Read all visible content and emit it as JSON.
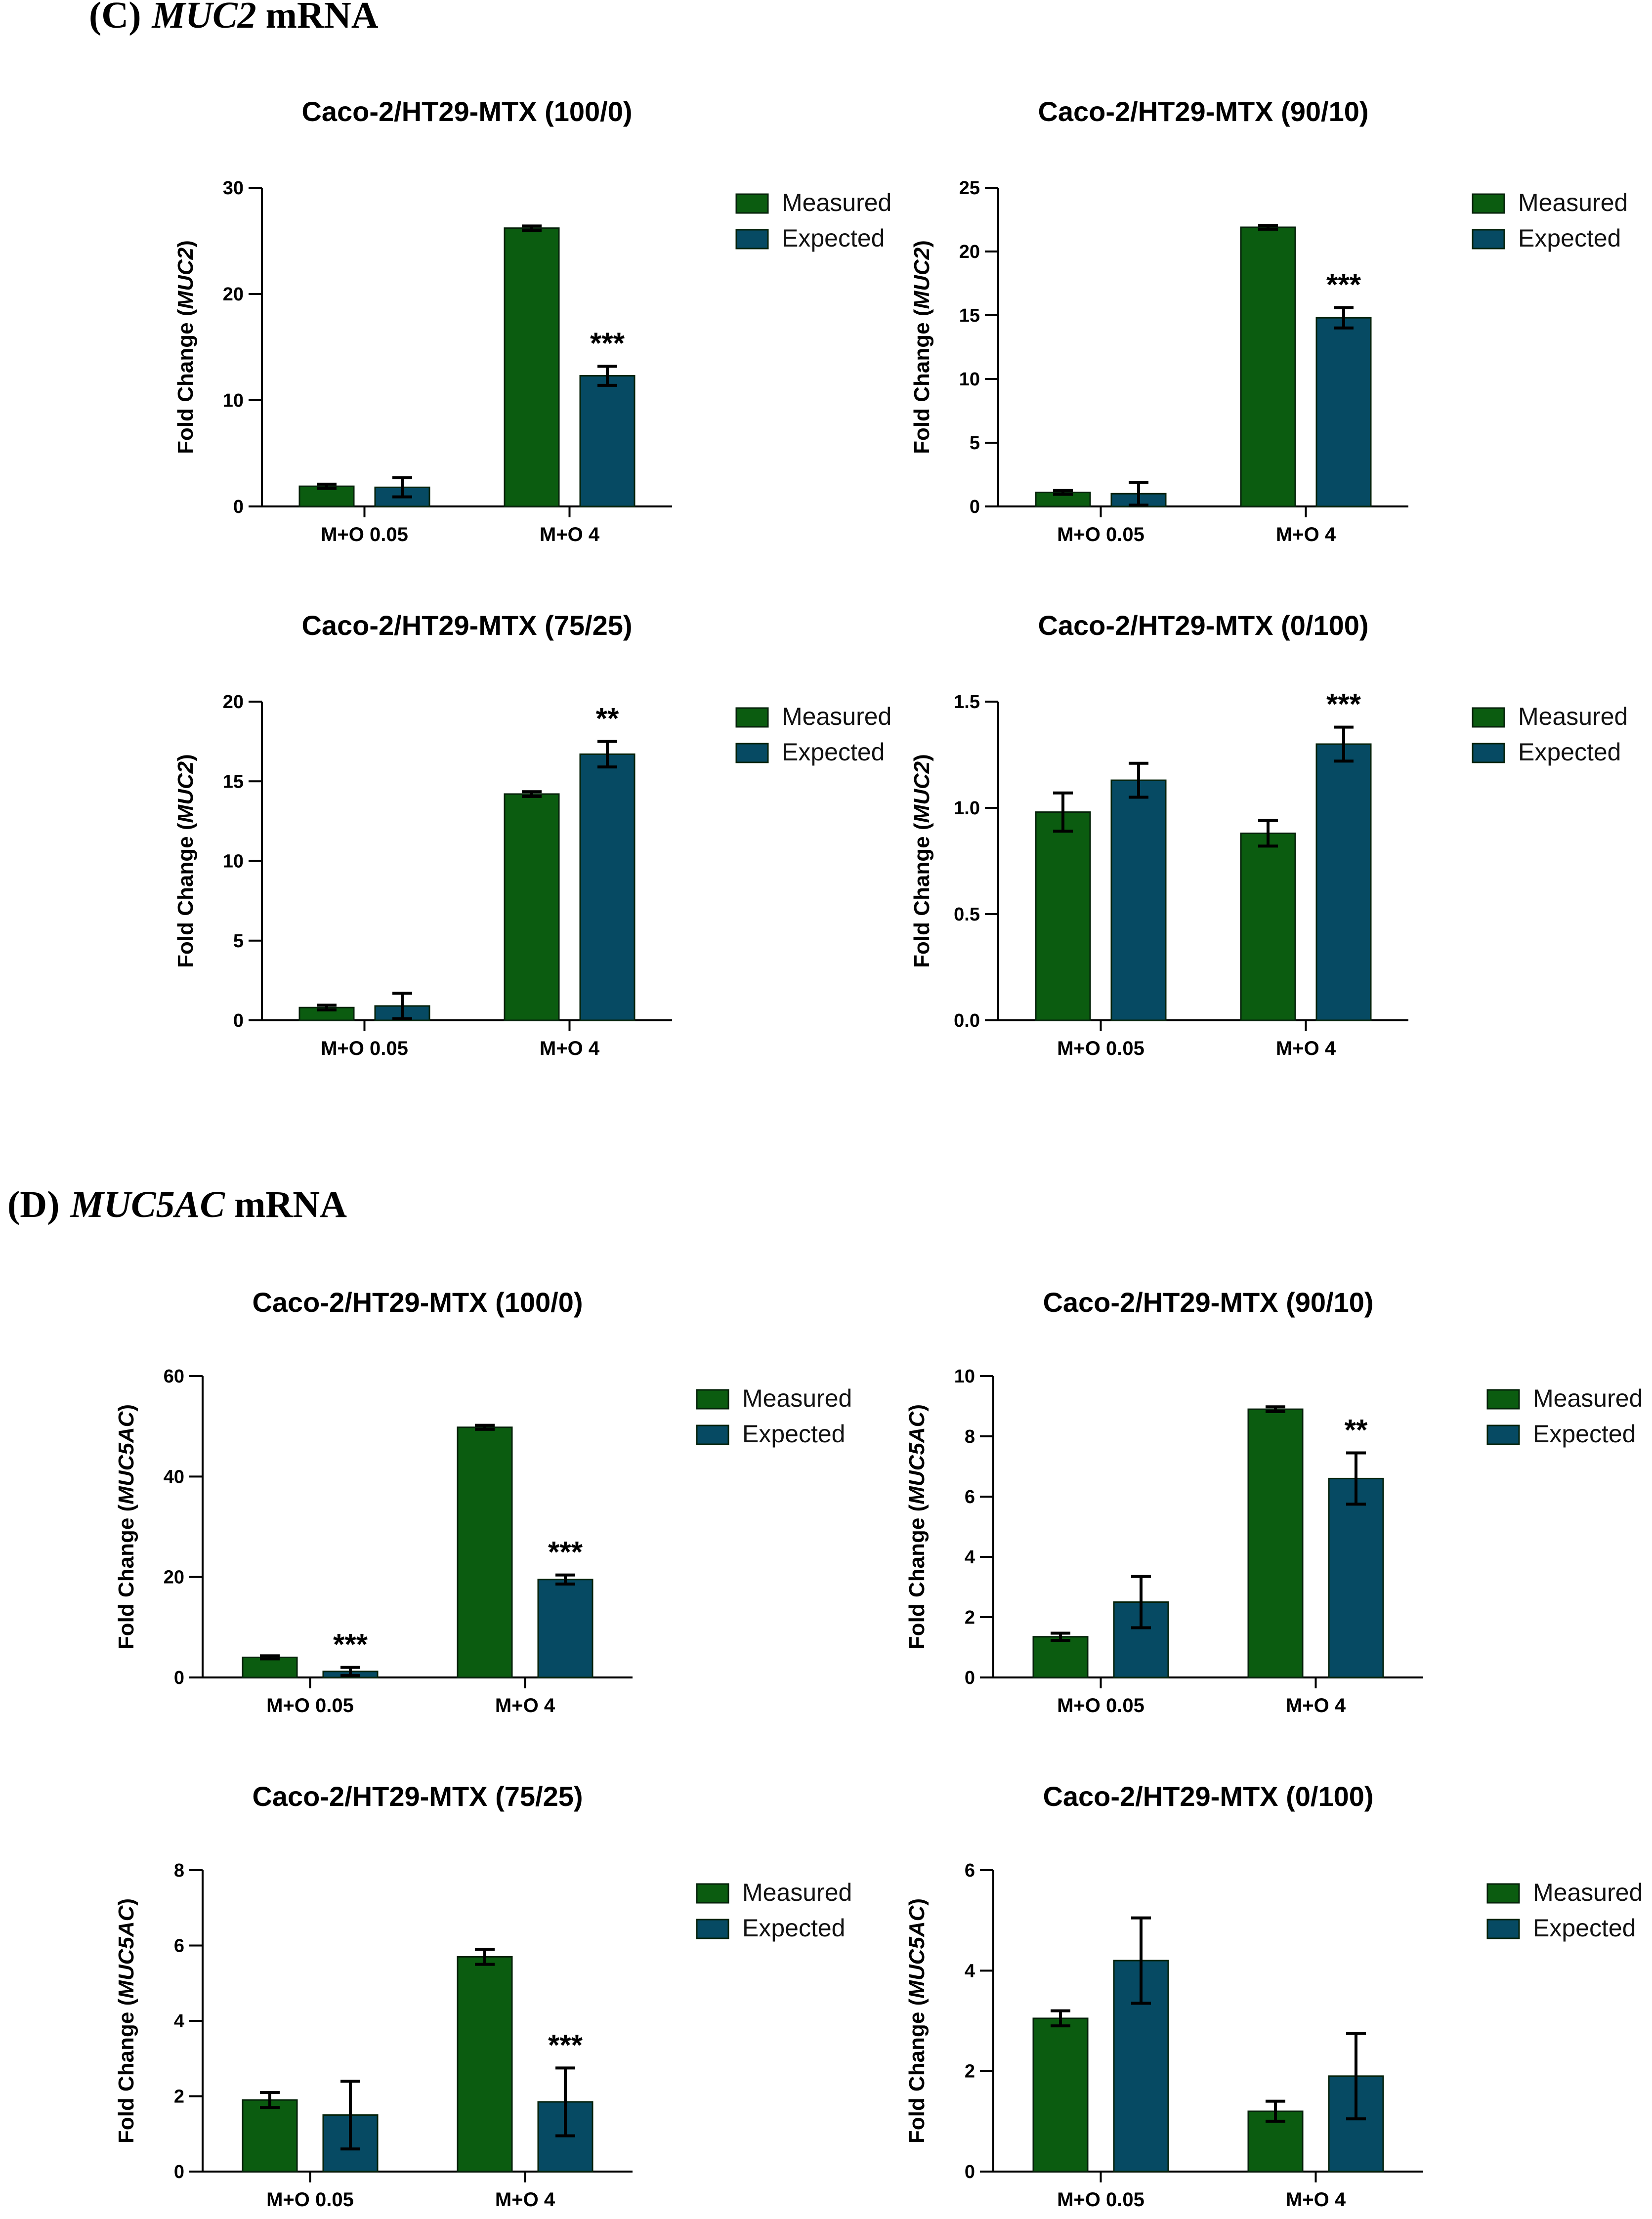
{
  "sections": [
    {
      "letter": "(C)",
      "gene": "MUC2",
      "suffix": " mRNA"
    },
    {
      "letter": "(D)",
      "gene": "MUC5AC",
      "suffix": " mRNA"
    }
  ],
  "colors": {
    "measured": "#0b5c10",
    "expected": "#064a63",
    "bar_stroke": "#05220a",
    "axis": "#000000"
  },
  "chart_data": [
    {
      "type": "bar",
      "title": "Caco-2/HT29-MTX (100/0)",
      "ylabel_prefix": "Fold Change (",
      "ylabel_gene": "MUC2",
      "ylabel_suffix": ")",
      "categories": [
        "M+O 0.05",
        "M+O 4"
      ],
      "ylim": [
        0,
        30
      ],
      "yticks": [
        "0",
        "10",
        "20",
        "30"
      ],
      "series": [
        {
          "name": "Measured",
          "values": [
            1.9,
            26.2
          ],
          "errors": [
            0.2,
            0.2
          ]
        },
        {
          "name": "Expected",
          "values": [
            1.8,
            12.3
          ],
          "errors": [
            0.9,
            0.9
          ]
        }
      ],
      "annotations": [
        {
          "series": 1,
          "category": 1,
          "text": "***"
        }
      ]
    },
    {
      "type": "bar",
      "title": "Caco-2/HT29-MTX (90/10)",
      "ylabel_prefix": "Fold Change (",
      "ylabel_gene": "MUC2",
      "ylabel_suffix": ")",
      "categories": [
        "M+O 0.05",
        "M+O 4"
      ],
      "ylim": [
        0,
        25
      ],
      "yticks": [
        "0",
        "5",
        "10",
        "15",
        "20",
        "25"
      ],
      "series": [
        {
          "name": "Measured",
          "values": [
            1.1,
            21.9
          ],
          "errors": [
            0.15,
            0.15
          ]
        },
        {
          "name": "Expected",
          "values": [
            1.0,
            14.8
          ],
          "errors": [
            0.9,
            0.8
          ]
        }
      ],
      "annotations": [
        {
          "series": 1,
          "category": 1,
          "text": "***"
        }
      ]
    },
    {
      "type": "bar",
      "title": "Caco-2/HT29-MTX (75/25)",
      "ylabel_prefix": "Fold Change (",
      "ylabel_gene": "MUC2",
      "ylabel_suffix": ")",
      "categories": [
        "M+O 0.05",
        "M+O 4"
      ],
      "ylim": [
        0,
        20
      ],
      "yticks": [
        "0",
        "5",
        "10",
        "15",
        "20"
      ],
      "series": [
        {
          "name": "Measured",
          "values": [
            0.8,
            14.2
          ],
          "errors": [
            0.15,
            0.15
          ]
        },
        {
          "name": "Expected",
          "values": [
            0.9,
            16.7
          ],
          "errors": [
            0.8,
            0.8
          ]
        }
      ],
      "annotations": [
        {
          "series": 1,
          "category": 1,
          "text": "**"
        }
      ]
    },
    {
      "type": "bar",
      "title": "Caco-2/HT29-MTX (0/100)",
      "ylabel_prefix": "Fold Change (",
      "ylabel_gene": "MUC2",
      "ylabel_suffix": ")",
      "categories": [
        "M+O 0.05",
        "M+O 4"
      ],
      "ylim": [
        0,
        1.5
      ],
      "yticks": [
        "0.0",
        "0.5",
        "1.0",
        "1.5"
      ],
      "series": [
        {
          "name": "Measured",
          "values": [
            0.98,
            0.88
          ],
          "errors": [
            0.09,
            0.06
          ]
        },
        {
          "name": "Expected",
          "values": [
            1.13,
            1.3
          ],
          "errors": [
            0.08,
            0.08
          ]
        }
      ],
      "annotations": [
        {
          "series": 1,
          "category": 1,
          "text": "***"
        }
      ]
    },
    {
      "type": "bar",
      "title": "Caco-2/HT29-MTX (100/0)",
      "ylabel_prefix": "Fold Change (",
      "ylabel_gene": "MUC5AC",
      "ylabel_suffix": ")",
      "categories": [
        "M+O 0.05",
        "M+O 4"
      ],
      "ylim": [
        0,
        60
      ],
      "yticks": [
        "0",
        "20",
        "40",
        "60"
      ],
      "series": [
        {
          "name": "Measured",
          "values": [
            4.0,
            49.8
          ],
          "errors": [
            0.3,
            0.4
          ]
        },
        {
          "name": "Expected",
          "values": [
            1.2,
            19.5
          ],
          "errors": [
            0.8,
            0.9
          ]
        }
      ],
      "annotations": [
        {
          "series": 1,
          "category": 0,
          "text": "***"
        },
        {
          "series": 1,
          "category": 1,
          "text": "***"
        }
      ]
    },
    {
      "type": "bar",
      "title": "Caco-2/HT29-MTX (90/10)",
      "ylabel_prefix": "Fold Change (",
      "ylabel_gene": "MUC5AC",
      "ylabel_suffix": ")",
      "categories": [
        "M+O 0.05",
        "M+O 4"
      ],
      "ylim": [
        0,
        10
      ],
      "yticks": [
        "0",
        "2",
        "4",
        "6",
        "8",
        "10"
      ],
      "series": [
        {
          "name": "Measured",
          "values": [
            1.35,
            8.9
          ],
          "errors": [
            0.12,
            0.08
          ]
        },
        {
          "name": "Expected",
          "values": [
            2.5,
            6.6
          ],
          "errors": [
            0.85,
            0.85
          ]
        }
      ],
      "annotations": [
        {
          "series": 1,
          "category": 1,
          "text": "**"
        }
      ]
    },
    {
      "type": "bar",
      "title": "Caco-2/HT29-MTX (75/25)",
      "ylabel_prefix": "Fold Change (",
      "ylabel_gene": "MUC5AC",
      "ylabel_suffix": ")",
      "categories": [
        "M+O 0.05",
        "M+O 4"
      ],
      "ylim": [
        0,
        8
      ],
      "yticks": [
        "0",
        "2",
        "4",
        "6",
        "8"
      ],
      "series": [
        {
          "name": "Measured",
          "values": [
            1.9,
            5.7
          ],
          "errors": [
            0.2,
            0.2
          ]
        },
        {
          "name": "Expected",
          "values": [
            1.5,
            1.85
          ],
          "errors": [
            0.9,
            0.9
          ]
        }
      ],
      "annotations": [
        {
          "series": 1,
          "category": 1,
          "text": "***"
        }
      ]
    },
    {
      "type": "bar",
      "title": "Caco-2/HT29-MTX (0/100)",
      "ylabel_prefix": "Fold Change (",
      "ylabel_gene": "MUC5AC",
      "ylabel_suffix": ")",
      "categories": [
        "M+O 0.05",
        "M+O 4"
      ],
      "ylim": [
        0,
        6
      ],
      "yticks": [
        "0",
        "2",
        "4",
        "6"
      ],
      "series": [
        {
          "name": "Measured",
          "values": [
            3.05,
            1.2
          ],
          "errors": [
            0.15,
            0.2
          ]
        },
        {
          "name": "Expected",
          "values": [
            4.2,
            1.9
          ],
          "errors": [
            0.85,
            0.85
          ]
        }
      ],
      "annotations": []
    }
  ]
}
